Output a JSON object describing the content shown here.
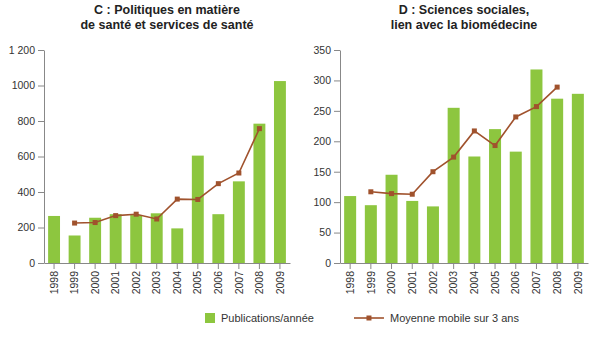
{
  "chart_data": [
    {
      "type": "bar",
      "title": "C : Politiques en matière\nde santé et services de santé",
      "categories": [
        "1998",
        "1999",
        "2000",
        "2001",
        "2002",
        "2003",
        "2004",
        "2005",
        "2006",
        "2007",
        "2008",
        "2009"
      ],
      "series": [
        {
          "name": "Publications/année",
          "type": "bar",
          "color": "#8dc63f",
          "values": [
            265,
            155,
            255,
            275,
            270,
            280,
            195,
            605,
            275,
            460,
            785,
            1025
          ]
        },
        {
          "name": "Moyenne mobile sur 3 ans",
          "type": "line",
          "color": "#a0522d",
          "marker": "square",
          "values": [
            null,
            225,
            228,
            267,
            275,
            248,
            360,
            358,
            447,
            507,
            757,
            null
          ]
        }
      ],
      "ylim": [
        0,
        1200
      ],
      "yticks": [
        0,
        200,
        400,
        600,
        800,
        1000,
        {
          "value": 1200,
          "label": "1 200"
        }
      ],
      "grid": false
    },
    {
      "type": "bar",
      "title": "D : Sciences sociales,\nlien avec la biomédecine",
      "categories": [
        "1998",
        "1999",
        "2000",
        "2001",
        "2002",
        "2003",
        "2004",
        "2005",
        "2006",
        "2007",
        "2008",
        "2009"
      ],
      "series": [
        {
          "type": "bar",
          "color": "#8dc63f",
          "values": [
            110,
            95,
            145,
            102,
            93,
            255,
            175,
            220,
            183,
            318,
            270,
            278
          ]
        },
        {
          "type": "line",
          "color": "#a0522d",
          "marker": "square",
          "values": [
            null,
            117,
            114,
            113,
            150,
            174,
            217,
            193,
            240,
            257,
            289,
            null
          ]
        }
      ],
      "ylim": [
        0,
        350
      ],
      "yticks": [
        0,
        50,
        100,
        150,
        200,
        250,
        300,
        350
      ],
      "grid": false
    }
  ]
}
